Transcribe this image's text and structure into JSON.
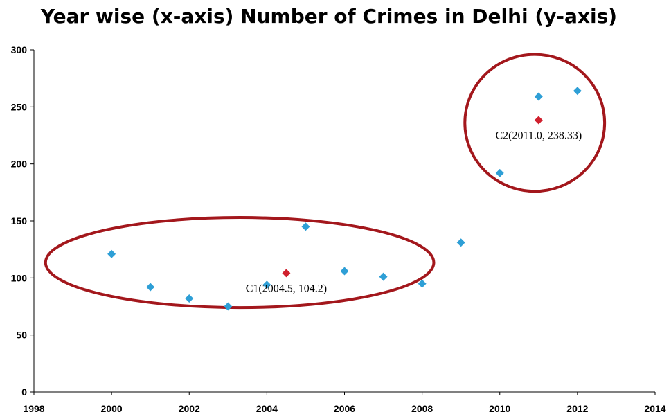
{
  "chart_data": {
    "type": "scatter",
    "title": "Year wise (x-axis) Number of Crimes in Delhi (y-axis)",
    "xlabel": "",
    "ylabel": "",
    "xlim": [
      1998,
      2014
    ],
    "ylim": [
      0,
      300
    ],
    "x_ticks": [
      1998,
      2000,
      2002,
      2004,
      2006,
      2008,
      2010,
      2012,
      2014
    ],
    "y_ticks": [
      0,
      50,
      100,
      150,
      200,
      250,
      300
    ],
    "grid": false,
    "series": [
      {
        "color": "#2e9fd6",
        "marker": "diamond",
        "points": [
          {
            "x": 2000,
            "y": 121
          },
          {
            "x": 2001,
            "y": 92
          },
          {
            "x": 2002,
            "y": 82
          },
          {
            "x": 2003,
            "y": 75
          },
          {
            "x": 2004,
            "y": 94
          },
          {
            "x": 2005,
            "y": 145
          },
          {
            "x": 2006,
            "y": 106
          },
          {
            "x": 2007,
            "y": 101
          },
          {
            "x": 2008,
            "y": 95
          },
          {
            "x": 2009,
            "y": 131
          },
          {
            "x": 2010,
            "y": 192
          },
          {
            "x": 2011,
            "y": 259
          },
          {
            "x": 2012,
            "y": 264
          }
        ]
      },
      {
        "color": "#d0202e",
        "marker": "diamond",
        "points": [
          {
            "x": 2004.5,
            "y": 104.2,
            "label": "C1(2004.5, 104.2)"
          },
          {
            "x": 2011.0,
            "y": 238.33,
            "label": "C2(2011.0, 238.33)"
          }
        ]
      }
    ],
    "clusters": [
      {
        "color": "#a3171c",
        "x_range": [
          1998.3,
          2008.3
        ],
        "y_range": [
          74,
          153
        ]
      },
      {
        "color": "#a3171c",
        "x_range": [
          2009.1,
          2012.7
        ],
        "y_range": [
          176,
          296
        ]
      }
    ]
  }
}
